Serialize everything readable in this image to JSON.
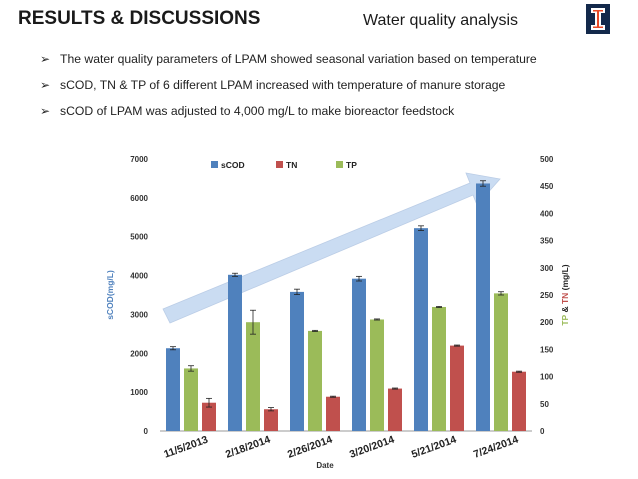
{
  "header": {
    "title": "RESULTS & DISCUSSIONS",
    "subtitle": "Water quality analysis",
    "logo": "university-block-i-logo"
  },
  "bullets": [
    "The water quality parameters of LPAM showed seasonal variation based on temperature",
    "sCOD, TN & TP of 6 different LPAM increased with temperature of manure storage",
    "sCOD of LPAM was adjusted to 4,000 mg/L to make bioreactor feedstock"
  ],
  "colors": {
    "sCOD": "#4f81bd",
    "TN": "#c0504d",
    "TP": "#9bbb59",
    "arrow": "#c5d9f1",
    "ylabel_left": "#4f81bd",
    "ylabel_tp": "#9bbb59",
    "ylabel_tn": "#c0504d"
  },
  "chart_data": {
    "type": "bar",
    "title": "",
    "categories": [
      "11/5/2013",
      "2/18/2014",
      "2/26/2014",
      "3/20/2014",
      "5/21/2014",
      "7/24/2014"
    ],
    "xlabel": "Date",
    "ylabel_left": "sCOD(mg/L)",
    "ylabel_right": {
      "tp": "TP",
      "amp": " & ",
      "tn": "TN",
      "unit": " (mg/L)"
    },
    "ylim_left": [
      0,
      7000
    ],
    "yticks_left": [
      0,
      1000,
      2000,
      3000,
      4000,
      5000,
      6000,
      7000
    ],
    "ylim_right": [
      0,
      500
    ],
    "yticks_right": [
      0,
      50,
      100,
      150,
      200,
      250,
      300,
      350,
      400,
      450,
      500
    ],
    "legend": [
      "sCOD",
      "TN",
      "TP"
    ],
    "legend_position": "top-left",
    "series": [
      {
        "name": "sCOD",
        "axis": "left",
        "values": [
          2130,
          4020,
          3580,
          3920,
          5220,
          6370
        ],
        "errors": [
          40,
          40,
          70,
          60,
          60,
          70
        ]
      },
      {
        "name": "TP",
        "axis": "right",
        "values": [
          115,
          200,
          184,
          205,
          228,
          253
        ],
        "errors": [
          5,
          22,
          1,
          1,
          1,
          3
        ]
      },
      {
        "name": "TN",
        "axis": "right",
        "values": [
          52,
          40,
          63,
          78,
          157,
          109
        ],
        "errors": [
          8,
          3,
          1,
          1,
          1,
          1
        ]
      }
    ],
    "annotations": [
      "trend-arrow"
    ]
  }
}
